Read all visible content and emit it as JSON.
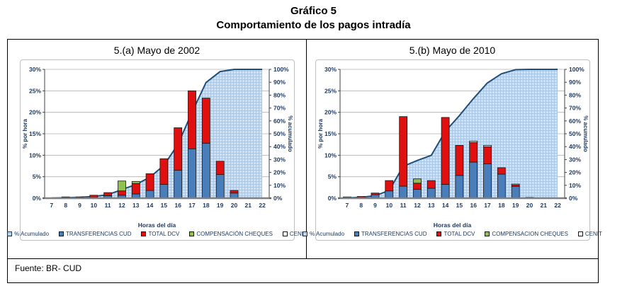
{
  "page": {
    "title": "Gráfico 5",
    "subtitle": "Comportamiento de los pagos intradía",
    "source": "Fuente: BR- CUD"
  },
  "colors": {
    "cud_blue": "#4a7ebb",
    "dcv_red": "#e01010",
    "cheques_green": "#92c050",
    "cenit_white": "#ffffff",
    "area_fill": "#cfe1f3",
    "area_grid": "#a9c6e5",
    "cum_line": "#1f4e79",
    "gridline": "#b0b0b0",
    "axis_text": "#1f3a60"
  },
  "chart_data": [
    {
      "type": "combo-stacked-bar-area",
      "title": "5.(a) Mayo de 2002",
      "xlabel": "Horas del día",
      "ylabel_left": "% por hora",
      "ylabel_right": "% acumulado",
      "ylim_left": [
        0,
        30
      ],
      "ylim_right": [
        0,
        100
      ],
      "y_left_tick_step": 5,
      "y_right_tick_step": 10,
      "grid": true,
      "legend_position": "bottom",
      "x": [
        7,
        8,
        9,
        10,
        11,
        12,
        13,
        14,
        15,
        16,
        17,
        18,
        19,
        20,
        21,
        22
      ],
      "series": [
        {
          "name": "TRANSFERENCIAS CUD",
          "color": "#4a7ebb",
          "values": [
            0.1,
            0.2,
            0.2,
            0.2,
            0.6,
            0.7,
            1.0,
            1.8,
            3.2,
            6.5,
            11.5,
            12.8,
            5.5,
            1.2,
            0.1,
            0
          ]
        },
        {
          "name": "TOTAL DCV",
          "color": "#e01010",
          "values": [
            0,
            0.1,
            0.1,
            0.5,
            0.7,
            1.0,
            2.4,
            3.9,
            6.0,
            9.9,
            13.5,
            10.5,
            3.1,
            0.6,
            0,
            0
          ]
        },
        {
          "name": "COMPENSACIÓN CHEQUES",
          "color": "#92c050",
          "values": [
            0,
            0,
            0,
            0,
            0,
            2.3,
            0.5,
            0,
            0,
            0,
            0,
            0,
            0,
            0,
            0,
            0
          ]
        },
        {
          "name": "CENIT",
          "color": "#ffffff",
          "values": [
            0,
            0,
            0,
            0,
            0,
            0,
            0,
            0,
            0,
            0,
            0,
            0,
            0,
            0,
            0,
            0
          ]
        }
      ],
      "cumulative": {
        "name": "% Acumulado",
        "axis": "right",
        "values": [
          0.1,
          0.4,
          0.7,
          1.4,
          2.7,
          6.7,
          10.6,
          16.3,
          25.5,
          41.8,
          66.7,
          89.8,
          98.3,
          100,
          100,
          100
        ]
      },
      "legend": [
        "% Acumulado",
        "TRANSFERENCIAS CUD",
        "TOTAL DCV",
        "COMPENSACIÓN CHEQUES",
        "CENIT"
      ]
    },
    {
      "type": "combo-stacked-bar-area",
      "title": "5.(b) Mayo de 2010",
      "xlabel": "Horas del día",
      "ylabel_left": "% por hora",
      "ylabel_right": "% acumulado",
      "ylim_left": [
        0,
        30
      ],
      "ylim_right": [
        0,
        100
      ],
      "y_left_tick_step": 5,
      "y_right_tick_step": 10,
      "grid": true,
      "legend_position": "bottom",
      "x": [
        7,
        8,
        9,
        10,
        11,
        12,
        13,
        14,
        15,
        16,
        17,
        18,
        19,
        20,
        21,
        22
      ],
      "series": [
        {
          "name": "TRANSFERENCIAS CUD",
          "color": "#4a7ebb",
          "values": [
            0.3,
            0.2,
            0.8,
            1.7,
            2.8,
            2.1,
            2.3,
            3.2,
            5.3,
            8.4,
            8.0,
            5.6,
            2.7,
            0.2,
            0,
            0
          ]
        },
        {
          "name": "TOTAL DCV",
          "color": "#e01010",
          "values": [
            0,
            0.2,
            0.4,
            2.4,
            16.2,
            1.4,
            1.8,
            15.6,
            7.0,
            4.6,
            4.0,
            1.5,
            0.4,
            0,
            0,
            0
          ]
        },
        {
          "name": "COMPENSACION CHEQUES",
          "color": "#92c050",
          "values": [
            0,
            0,
            0,
            0,
            0,
            1.0,
            0,
            0,
            0,
            0,
            0,
            0,
            0,
            0,
            0,
            0
          ]
        },
        {
          "name": "CENIT",
          "color": "#ffffff",
          "values": [
            0,
            0,
            0,
            0,
            0,
            0,
            0,
            0,
            0,
            0.3,
            0.3,
            0,
            0.2,
            0,
            0,
            0
          ]
        }
      ],
      "cumulative": {
        "name": "% Acumulado",
        "axis": "right",
        "values": [
          0.3,
          0.7,
          1.9,
          6.0,
          24.8,
          29.3,
          33.3,
          51.9,
          64.1,
          77.3,
          89.5,
          96.6,
          99.8,
          100,
          100,
          100
        ]
      },
      "legend": [
        "% Acumulado",
        "TRANSFERENCIAS CUD",
        "TOTAL DCV",
        "COMPENSACION CHEQUES",
        "CENIT"
      ]
    }
  ]
}
